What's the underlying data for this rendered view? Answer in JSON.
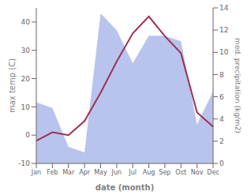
{
  "chart_data": {
    "type": "line",
    "xlabel": "date (month)",
    "ylabel": "max temp (C)",
    "y2label": "med. precipitation (kg/m2)",
    "categories": [
      "Jan",
      "Feb",
      "Mar",
      "Apr",
      "May",
      "Jun",
      "Jul",
      "Aug",
      "Sep",
      "Oct",
      "Nov",
      "Dec"
    ],
    "series": [
      {
        "type": "area",
        "axis": "y2",
        "color": "#b8c4ee",
        "values": [
          5.5,
          5.0,
          1.5,
          1.0,
          13.5,
          12.0,
          9.0,
          11.5,
          11.5,
          11.0,
          3.5,
          6.5
        ]
      },
      {
        "type": "line",
        "color": "#9e3050",
        "values": [
          -2,
          1,
          0,
          5,
          15,
          26,
          36,
          42,
          35,
          29,
          8,
          3
        ]
      }
    ],
    "ylim": [
      -10,
      45
    ],
    "yticks": [
      -10,
      0,
      10,
      20,
      30,
      40
    ],
    "y2lim": [
      0,
      14
    ],
    "y2ticks": [
      0,
      2,
      4,
      6,
      8,
      10,
      12,
      14
    ],
    "grid": false
  }
}
